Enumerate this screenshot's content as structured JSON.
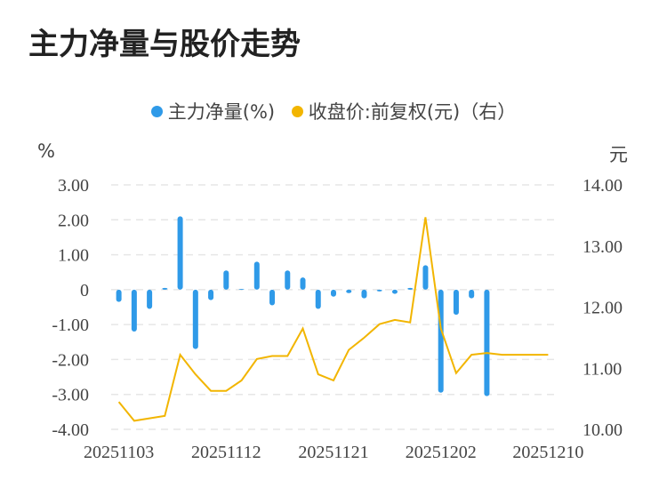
{
  "title": "主力净量与股价走势",
  "chart_data": {
    "type": "bar+line",
    "title": "主力净量与股价走势",
    "legend": [
      "主力净量(%)",
      "收盘价:前复权(元)（右）"
    ],
    "left_axis": {
      "unit": "%",
      "ylim": [
        -4,
        3
      ],
      "ticks": [
        "3.00",
        "2.00",
        "1.00",
        "0",
        "-1.00",
        "-2.00",
        "-3.00",
        "-4.00"
      ]
    },
    "right_axis": {
      "unit": "元",
      "ylim": [
        10,
        14
      ],
      "ticks": [
        "14.00",
        "13.00",
        "12.00",
        "11.00",
        "10.00"
      ]
    },
    "x_tick_labels": [
      "20251103",
      "20251112",
      "20251121",
      "20251202",
      "20251210"
    ],
    "colors": {
      "bar": "#2f9ae8",
      "line": "#f2b500",
      "grid": "#e6e6e6"
    },
    "series": [
      {
        "name": "主力净量(%)",
        "type": "bar",
        "axis": "left",
        "values": [
          -0.35,
          -1.2,
          -0.55,
          0.05,
          2.1,
          -1.7,
          -0.3,
          0.55,
          0.02,
          0.8,
          -0.45,
          0.55,
          0.35,
          -0.55,
          -0.2,
          -0.1,
          -0.25,
          -0.05,
          -0.12,
          0.05,
          0.7,
          -2.95,
          -0.72,
          -0.25,
          -3.05,
          0,
          0,
          0,
          0
        ]
      },
      {
        "name": "收盘价:前复权(元)（右）",
        "type": "line",
        "axis": "right",
        "values": [
          10.45,
          10.14,
          10.18,
          10.22,
          11.22,
          10.9,
          10.63,
          10.63,
          10.8,
          11.15,
          11.2,
          11.2,
          11.65,
          10.9,
          10.8,
          11.3,
          11.5,
          11.72,
          11.79,
          11.75,
          13.47,
          11.65,
          10.92,
          11.22,
          11.25,
          11.22,
          11.22,
          11.22,
          11.22
        ]
      }
    ]
  }
}
